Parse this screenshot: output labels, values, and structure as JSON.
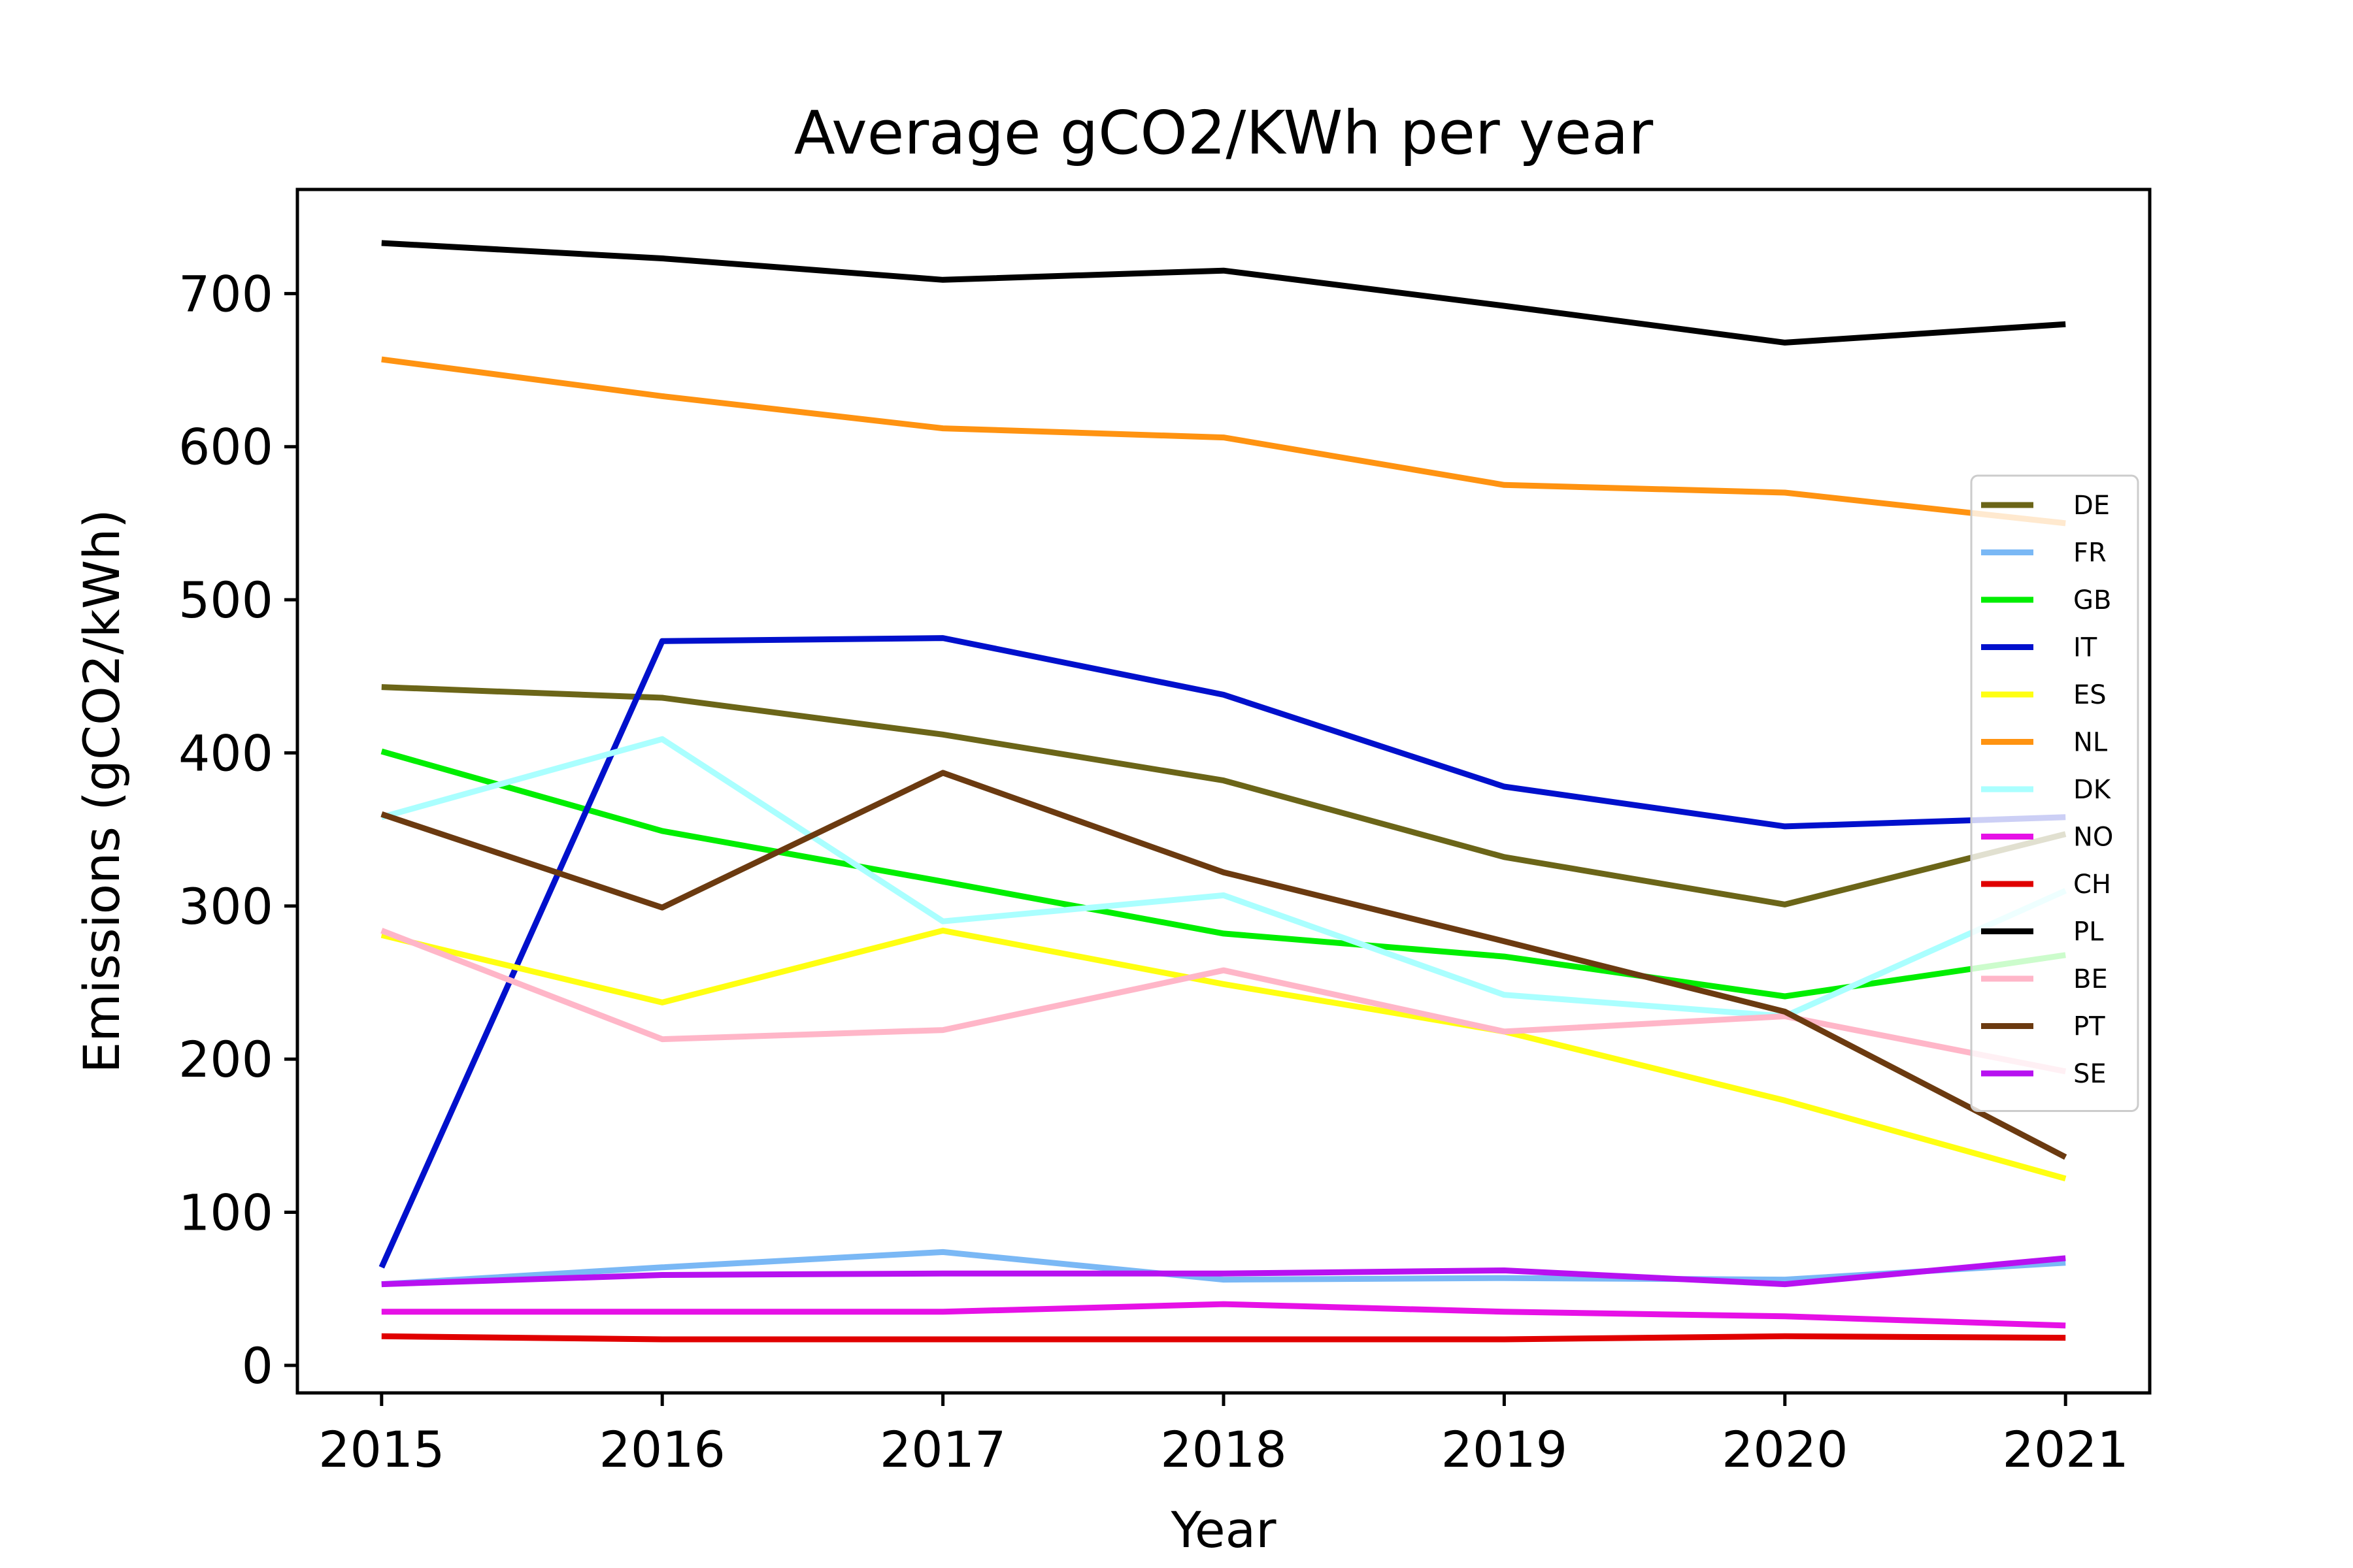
{
  "chart_data": {
    "type": "line",
    "title": "Average gCO2/KWh per year",
    "xlabel": "Year",
    "ylabel": "Emissions (gCO2/kWh)",
    "x": [
      2015,
      2016,
      2017,
      2018,
      2019,
      2020,
      2021
    ],
    "x_tick_labels": [
      "2015",
      "2016",
      "2017",
      "2018",
      "2019",
      "2020",
      "2021"
    ],
    "xlim": [
      2014.7,
      2021.3
    ],
    "ylim": [
      -18,
      768
    ],
    "y_ticks": [
      0,
      100,
      200,
      300,
      400,
      500,
      600,
      700
    ],
    "y_tick_labels": [
      "0",
      "100",
      "200",
      "300",
      "400",
      "500",
      "600",
      "700"
    ],
    "grid": false,
    "legend_position": "right",
    "series": [
      {
        "name": "DE",
        "color": "#6b6518",
        "values": [
          443,
          436,
          412,
          382,
          332,
          301,
          347
        ]
      },
      {
        "name": "FR",
        "color": "#7ab8f5",
        "values": [
          53,
          64,
          74,
          56,
          57,
          56,
          67
        ]
      },
      {
        "name": "GB",
        "color": "#00ee00",
        "values": [
          401,
          349,
          316,
          282,
          267,
          241,
          268
        ]
      },
      {
        "name": "IT",
        "color": "#0010cc",
        "values": [
          64,
          473,
          475,
          438,
          378,
          352,
          358
        ]
      },
      {
        "name": "ES",
        "color": "#ffff11",
        "values": [
          281,
          237,
          284,
          249,
          218,
          173,
          122
        ]
      },
      {
        "name": "NL",
        "color": "#ff9311",
        "values": [
          657,
          633,
          612,
          606,
          575,
          570,
          550
        ]
      },
      {
        "name": "DK",
        "color": "#aaffff",
        "values": [
          358,
          409,
          290,
          307,
          242,
          228,
          310
        ]
      },
      {
        "name": "NO",
        "color": "#e611e6",
        "values": [
          35,
          35,
          35,
          40,
          35,
          32,
          26
        ]
      },
      {
        "name": "CH",
        "color": "#e00000",
        "values": [
          19,
          17,
          17,
          17,
          17,
          19,
          18
        ]
      },
      {
        "name": "PL",
        "color": "#000000",
        "values": [
          733,
          723,
          709,
          715,
          692,
          668,
          680
        ]
      },
      {
        "name": "BE",
        "color": "#ffb6c8",
        "values": [
          284,
          213,
          219,
          258,
          218,
          228,
          192
        ]
      },
      {
        "name": "PT",
        "color": "#6b3a10",
        "values": [
          360,
          299,
          387,
          322,
          277,
          231,
          136
        ]
      },
      {
        "name": "SE",
        "color": "#b711f0",
        "values": [
          53,
          59,
          60,
          60,
          62,
          53,
          70
        ]
      }
    ]
  }
}
